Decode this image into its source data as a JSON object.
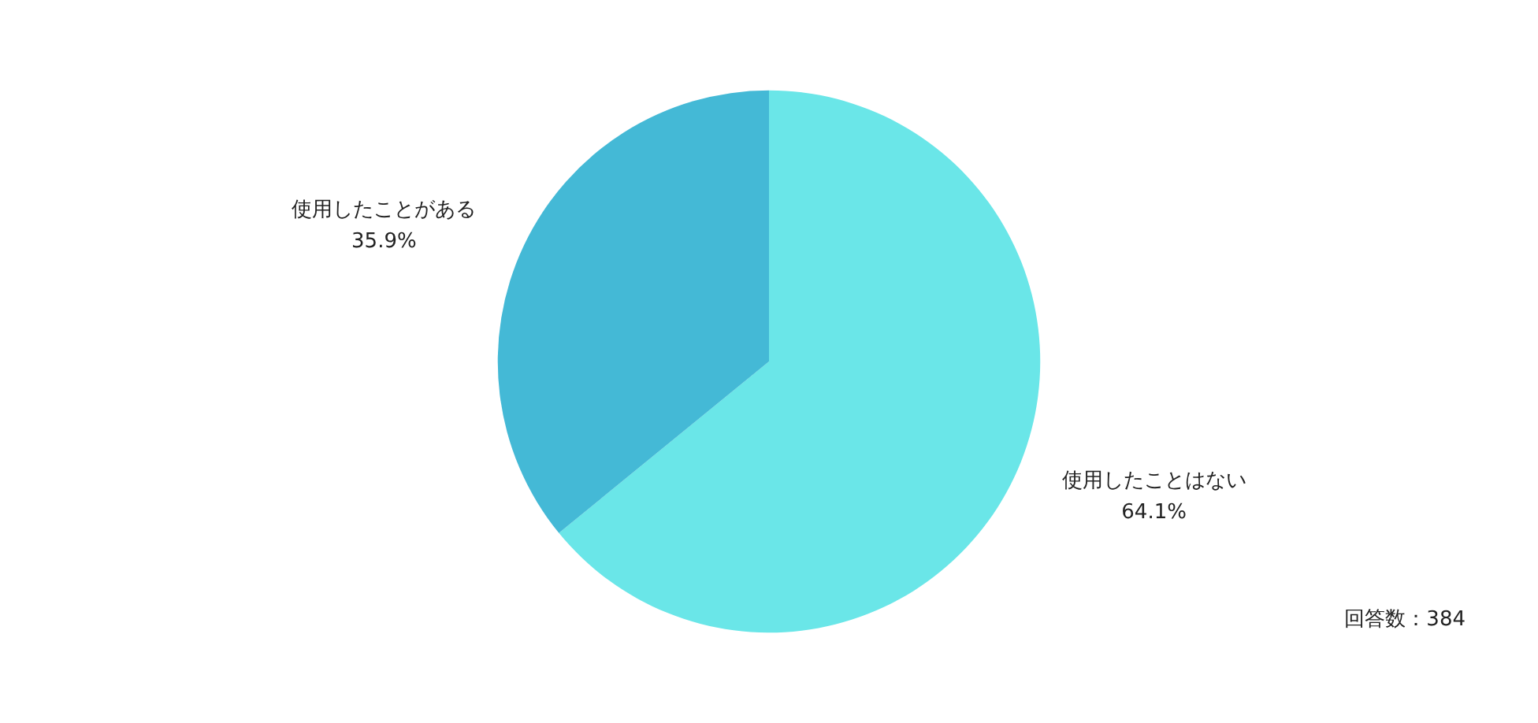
{
  "chart_data": {
    "type": "pie",
    "categories": [
      "使用したことはない",
      "使用したことがある"
    ],
    "values": [
      64.1,
      35.9
    ],
    "value_labels": [
      "64.1%",
      "35.9%"
    ],
    "colors": [
      "#6ae6e8",
      "#44b9d6"
    ],
    "annotations": [
      "回答数：384"
    ],
    "legend": false
  }
}
